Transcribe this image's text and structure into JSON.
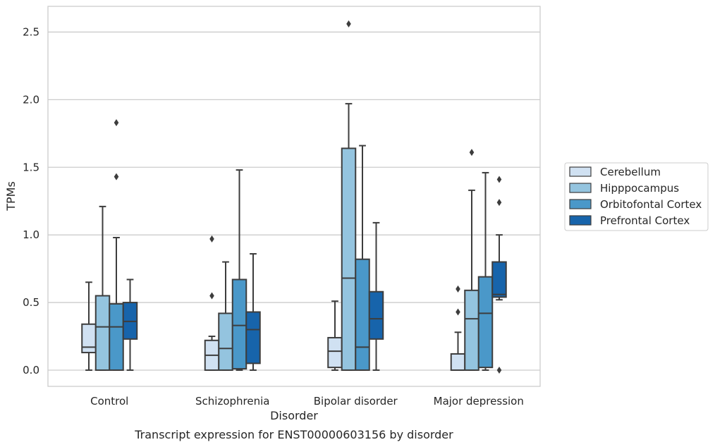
{
  "caption": "Transcript expression for ENST00000603156 by disorder",
  "chart_data": {
    "type": "box",
    "xlabel": "Disorder",
    "ylabel": "TPMs",
    "ylim": [
      -0.12,
      2.69
    ],
    "yticks": [
      "0.0",
      "0.5",
      "1.0",
      "1.5",
      "2.0",
      "2.5"
    ],
    "grid": "horizontal",
    "legend_position": "right",
    "categories": [
      "Control",
      "Schizophrenia",
      "Bipolar disorder",
      "Major depression"
    ],
    "series": [
      {
        "name": "Cerebellum",
        "color": "#d0e1f2",
        "boxes": [
          {
            "whislo": 0.0,
            "q1": 0.13,
            "med": 0.17,
            "q3": 0.34,
            "whishi": 0.65,
            "fliers": []
          },
          {
            "whislo": 0.0,
            "q1": 0.0,
            "med": 0.11,
            "q3": 0.22,
            "whishi": 0.25,
            "fliers": [
              0.55,
              0.97
            ]
          },
          {
            "whislo": 0.0,
            "q1": 0.02,
            "med": 0.14,
            "q3": 0.24,
            "whishi": 0.51,
            "fliers": []
          },
          {
            "whislo": 0.0,
            "q1": 0.0,
            "med": 0.0,
            "q3": 0.12,
            "whishi": 0.28,
            "fliers": [
              0.43,
              0.6
            ]
          }
        ]
      },
      {
        "name": "Hipppocampus",
        "color": "#94c4df",
        "boxes": [
          {
            "whislo": 0.0,
            "q1": 0.0,
            "med": 0.32,
            "q3": 0.55,
            "whishi": 1.21,
            "fliers": []
          },
          {
            "whislo": 0.0,
            "q1": 0.0,
            "med": 0.16,
            "q3": 0.42,
            "whishi": 0.8,
            "fliers": []
          },
          {
            "whislo": 0.0,
            "q1": 0.0,
            "med": 0.68,
            "q3": 1.64,
            "whishi": 1.97,
            "fliers": [
              2.56
            ]
          },
          {
            "whislo": 0.0,
            "q1": 0.0,
            "med": 0.38,
            "q3": 0.59,
            "whishi": 1.33,
            "fliers": [
              1.61
            ]
          }
        ]
      },
      {
        "name": "Orbitofontal Cortex",
        "color": "#4a98c9",
        "boxes": [
          {
            "whislo": 0.0,
            "q1": 0.0,
            "med": 0.32,
            "q3": 0.49,
            "whishi": 0.98,
            "fliers": [
              1.43,
              1.83
            ]
          },
          {
            "whislo": 0.0,
            "q1": 0.01,
            "med": 0.33,
            "q3": 0.67,
            "whishi": 1.48,
            "fliers": []
          },
          {
            "whislo": 0.0,
            "q1": 0.0,
            "med": 0.17,
            "q3": 0.82,
            "whishi": 1.66,
            "fliers": []
          },
          {
            "whislo": 0.0,
            "q1": 0.02,
            "med": 0.42,
            "q3": 0.69,
            "whishi": 1.46,
            "fliers": []
          }
        ]
      },
      {
        "name": "Prefrontal Cortex",
        "color": "#1764ab",
        "boxes": [
          {
            "whislo": 0.0,
            "q1": 0.23,
            "med": 0.36,
            "q3": 0.5,
            "whishi": 0.67,
            "fliers": []
          },
          {
            "whislo": 0.0,
            "q1": 0.05,
            "med": 0.3,
            "q3": 0.43,
            "whishi": 0.86,
            "fliers": []
          },
          {
            "whislo": 0.0,
            "q1": 0.23,
            "med": 0.38,
            "q3": 0.58,
            "whishi": 1.09,
            "fliers": []
          },
          {
            "whislo": 0.52,
            "q1": 0.54,
            "med": 0.56,
            "q3": 0.8,
            "whishi": 1.0,
            "fliers": [
              0.0,
              1.24,
              1.41
            ]
          }
        ]
      }
    ]
  }
}
